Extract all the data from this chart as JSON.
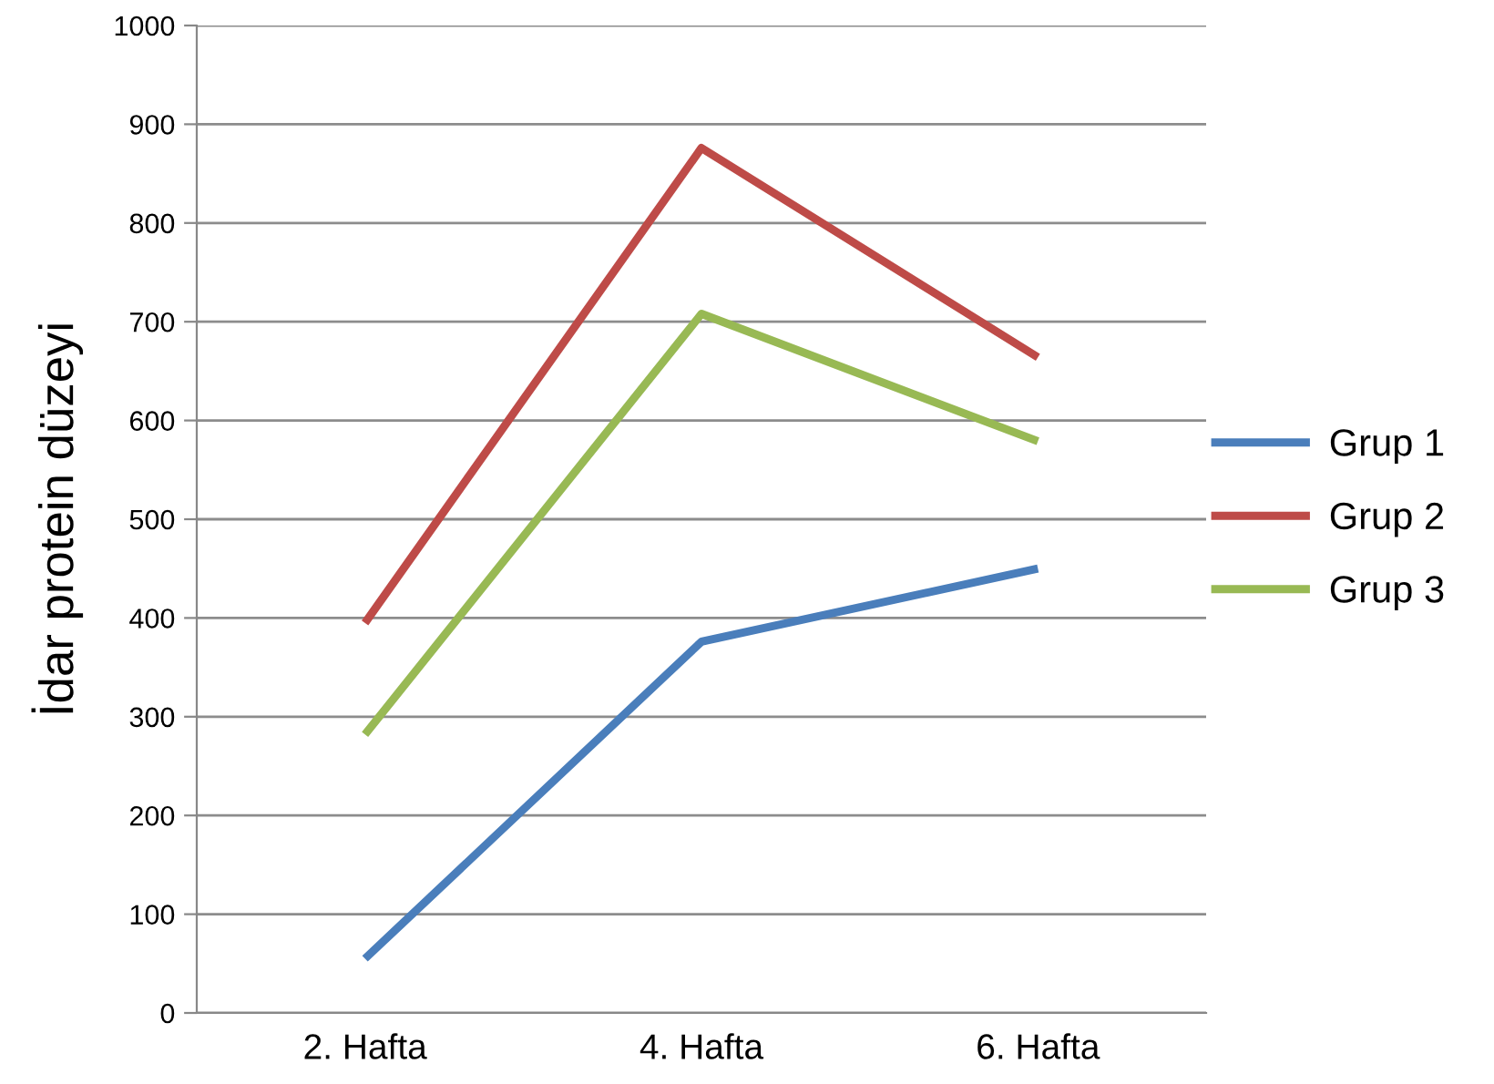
{
  "chart_data": {
    "type": "line",
    "ylabel": "İdar protein düzeyi",
    "categories": [
      "2. Hafta",
      "4. Hafta",
      "6. Hafta"
    ],
    "series": [
      {
        "name": "Grup 1",
        "color": "#4a7ebb",
        "values": [
          55,
          376,
          450
        ]
      },
      {
        "name": "Grup 2",
        "color": "#be4b48",
        "values": [
          395,
          876,
          664
        ]
      },
      {
        "name": "Grup 3",
        "color": "#98b954",
        "values": [
          282,
          708,
          579
        ]
      }
    ],
    "ylim": [
      0,
      1000
    ],
    "yticks": [
      0,
      100,
      200,
      300,
      400,
      500,
      600,
      700,
      800,
      900,
      1000
    ],
    "grid": "y",
    "legend": "right",
    "marker": "none",
    "line_style": "solid"
  }
}
